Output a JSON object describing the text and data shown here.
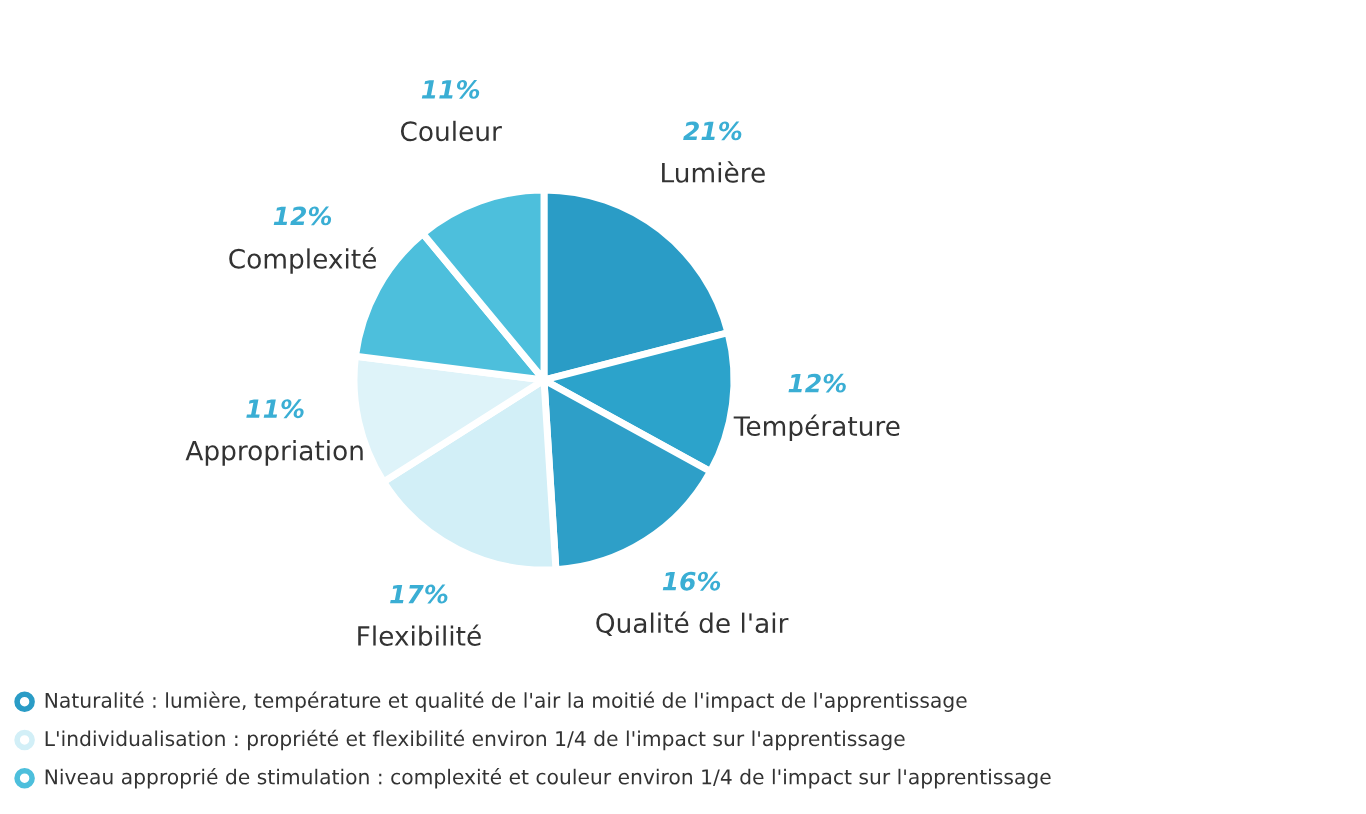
{
  "chart_data": {
    "type": "pie",
    "categories": [
      "Lumière",
      "Température",
      "Qualité de l'air",
      "Flexibilité",
      "Appropriation",
      "Complexité",
      "Couleur"
    ],
    "values": [
      21,
      12,
      16,
      17,
      11,
      12,
      11
    ],
    "colors": [
      "#2a9cc6",
      "#2ca3cb",
      "#2e9fc8",
      "#d2eff7",
      "#def3f9",
      "#4dbfdc",
      "#4dbfdc"
    ],
    "value_labels": [
      "21%",
      "12%",
      "16%",
      "17%",
      "11%",
      "12%",
      "11%"
    ],
    "annotations": [
      "Naturalité : lumière, température et qualité de l'air la moitié de l'impact de l'apprentissage",
      "L'individualisation : propriété et flexibilité environ 1/4 de l'impact sur l'apprentissage",
      "Niveau approprié de stimulation : complexité et couleur environ 1/4 de l'impact sur l'apprentissage"
    ]
  }
}
